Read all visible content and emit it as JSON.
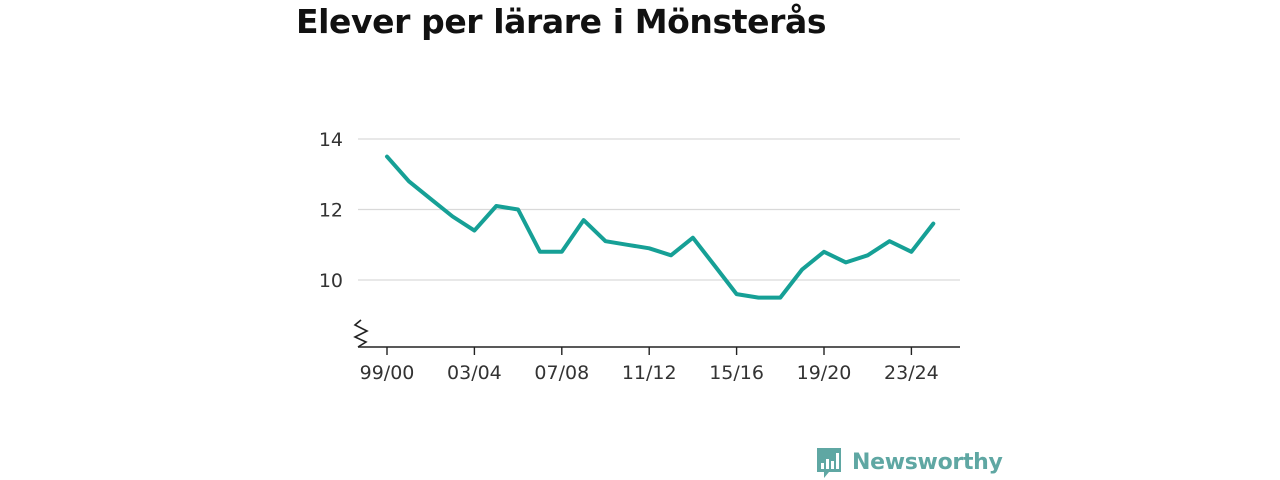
{
  "colors": {
    "line": "#16a096",
    "grid": "#d9d9d9",
    "axis": "#222222",
    "brand": "#5fa7a3",
    "title": "#111111"
  },
  "brand": {
    "logo_icon": "newsworthy-chart-icon",
    "name": "Newsworthy"
  },
  "chart_data": {
    "type": "line",
    "title": "Elever per lärare i Mönsterås",
    "xlabel": "",
    "ylabel": "",
    "ylim": [
      8,
      14.5
    ],
    "yticks": [
      10,
      12,
      14
    ],
    "axis_break": true,
    "grid": "horizontal",
    "categories": [
      "99/00",
      "00/01",
      "01/02",
      "02/03",
      "03/04",
      "04/05",
      "05/06",
      "06/07",
      "07/08",
      "08/09",
      "09/10",
      "10/11",
      "11/12",
      "12/13",
      "13/14",
      "14/15",
      "15/16",
      "16/17",
      "17/18",
      "18/19",
      "19/20",
      "20/21",
      "21/22",
      "22/23",
      "23/24",
      "24/25"
    ],
    "tick_labels": [
      "99/00",
      "03/04",
      "07/08",
      "11/12",
      "15/16",
      "19/20",
      "23/24"
    ],
    "series": [
      {
        "values": [
          13.5,
          12.8,
          12.3,
          11.8,
          11.4,
          12.1,
          12.0,
          10.8,
          10.8,
          11.7,
          11.1,
          11.0,
          10.9,
          10.7,
          11.2,
          10.4,
          9.6,
          9.5,
          9.5,
          10.3,
          10.8,
          10.5,
          10.7,
          11.1,
          10.8,
          11.6
        ]
      }
    ]
  }
}
